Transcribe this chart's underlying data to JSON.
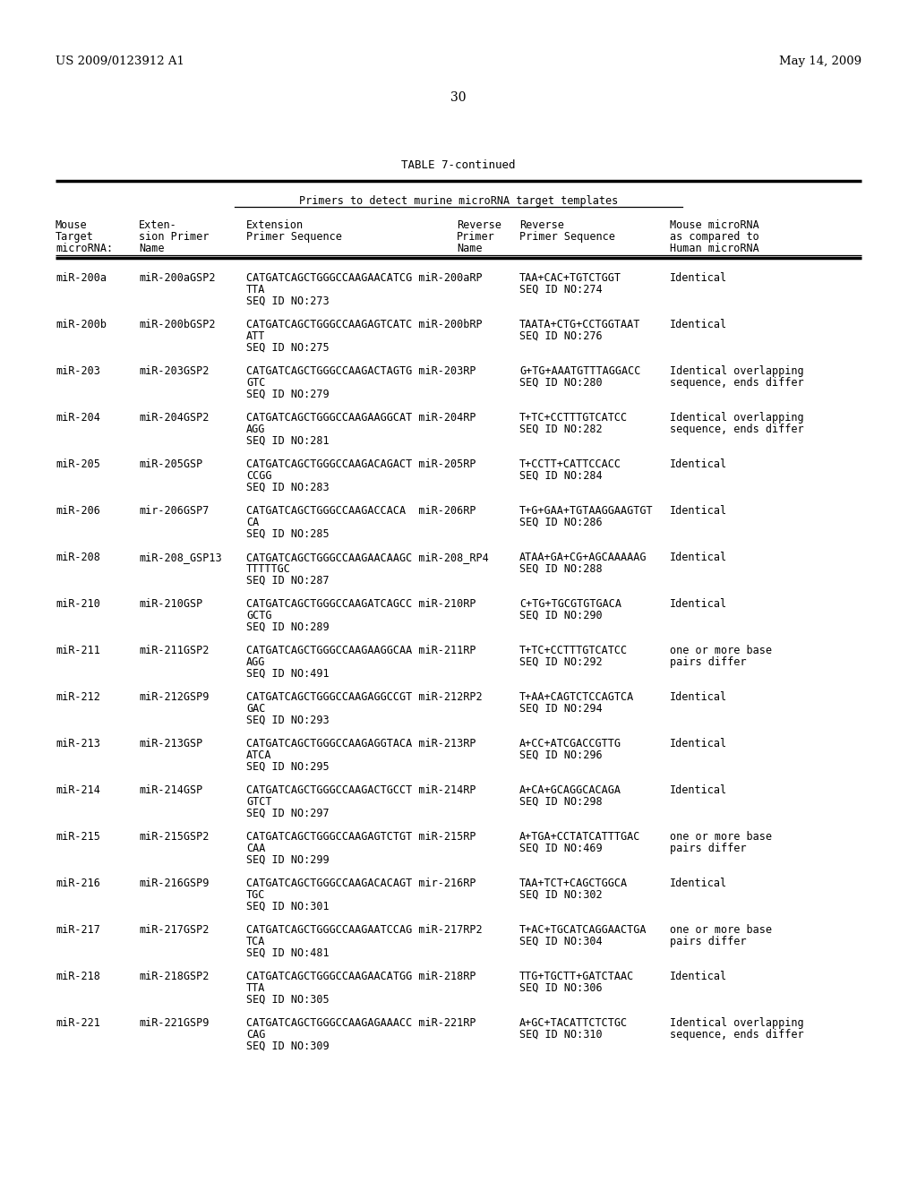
{
  "page_left": "US 2009/0123912 A1",
  "page_right": "May 14, 2009",
  "page_number": "30",
  "table_title": "TABLE 7-continued",
  "subtitle": "Primers to detect murine microRNA target templates",
  "col_headers": [
    [
      "Mouse",
      "Target",
      "microRNA:"
    ],
    [
      "Exten-",
      "sion Primer",
      "Name"
    ],
    [
      "Extension",
      "Primer Sequence"
    ],
    [
      "Reverse",
      "Primer",
      "Name"
    ],
    [
      "Reverse",
      "Primer Sequence"
    ],
    [
      "Mouse microRNA",
      "as compared to",
      "Human microRNA"
    ]
  ],
  "rows": [
    {
      "mirna": "miR-200a",
      "ext_primer": "miR-200aGSP2",
      "ext_seq": [
        "CATGATCAGCTGGGCCAAGAACATCG miR-200aRP",
        "TTA",
        "SEQ ID NO:273"
      ],
      "rev_seq": [
        "TAA+CAC+TGTCTGGT",
        "SEQ ID NO:274"
      ],
      "comparison": "Identical"
    },
    {
      "mirna": "miR-200b",
      "ext_primer": "miR-200bGSP2",
      "ext_seq": [
        "CATGATCAGCTGGGCCAAGAGTCATC miR-200bRP",
        "ATT",
        "SEQ ID NO:275"
      ],
      "rev_seq": [
        "TAATA+CTG+CCTGGTAAT",
        "SEQ ID NO:276"
      ],
      "comparison": "Identical"
    },
    {
      "mirna": "miR-203",
      "ext_primer": "miR-203GSP2",
      "ext_seq": [
        "CATGATCAGCTGGGCCAAGACTAGTG miR-203RP",
        "GTC",
        "SEQ ID NO:279"
      ],
      "rev_seq": [
        "G+TG+AAATGTTTAGGACC",
        "SEQ ID NO:280"
      ],
      "comparison": [
        "Identical overlapping",
        "sequence, ends differ"
      ]
    },
    {
      "mirna": "miR-204",
      "ext_primer": "miR-204GSP2",
      "ext_seq": [
        "CATGATCAGCTGGGCCAAGAAGGCAT miR-204RP",
        "AGG",
        "SEQ ID NO:281"
      ],
      "rev_seq": [
        "T+TC+CCTTTGTCATCC",
        "SEQ ID NO:282"
      ],
      "comparison": [
        "Identical overlapping",
        "sequence, ends differ"
      ]
    },
    {
      "mirna": "miR-205",
      "ext_primer": "miR-205GSP",
      "ext_seq": [
        "CATGATCAGCTGGGCCAAGACAGACT miR-205RP",
        "CCGG",
        "SEQ ID NO:283"
      ],
      "rev_seq": [
        "T+CCTT+CATTCCACC",
        "SEQ ID NO:284"
      ],
      "comparison": "Identical"
    },
    {
      "mirna": "miR-206",
      "ext_primer": "mir-206GSP7",
      "ext_seq": [
        "CATGATCAGCTGGGCCAAGACCACA  miR-206RP",
        "CA",
        "SEQ ID NO:285"
      ],
      "rev_seq": [
        "T+G+GAA+TGTAAGGAAGTGT",
        "SEQ ID NO:286"
      ],
      "comparison": "Identical"
    },
    {
      "mirna": "miR-208",
      "ext_primer": "miR-208_GSP13",
      "ext_seq": [
        "CATGATCAGCTGGGCCAAGAACAAGC miR-208_RP4",
        "TTTTTGC",
        "SEQ ID NO:287"
      ],
      "rev_seq": [
        "ATAA+GA+CG+AGCAAAAAG",
        "SEQ ID NO:288"
      ],
      "comparison": "Identical"
    },
    {
      "mirna": "miR-210",
      "ext_primer": "miR-210GSP",
      "ext_seq": [
        "CATGATCAGCTGGGCCAAGATCAGCC miR-210RP",
        "GCTG",
        "SEQ ID NO:289"
      ],
      "rev_seq": [
        "C+TG+TGCGTGTGACA",
        "SEQ ID NO:290"
      ],
      "comparison": "Identical"
    },
    {
      "mirna": "miR-211",
      "ext_primer": "miR-211GSP2",
      "ext_seq": [
        "CATGATCAGCTGGGCCAAGAAGGCAA miR-211RP",
        "AGG",
        "SEQ ID NO:491"
      ],
      "rev_seq": [
        "T+TC+CCTTTGTCATCC",
        "SEQ ID NO:292"
      ],
      "comparison": [
        "one or more base",
        "pairs differ"
      ]
    },
    {
      "mirna": "miR-212",
      "ext_primer": "miR-212GSP9",
      "ext_seq": [
        "CATGATCAGCTGGGCCAAGAGGCCGT miR-212RP2",
        "GAC",
        "SEQ ID NO:293"
      ],
      "rev_seq": [
        "T+AA+CAGTCTCCAGTCA",
        "SEQ ID NO:294"
      ],
      "comparison": "Identical"
    },
    {
      "mirna": "miR-213",
      "ext_primer": "miR-213GSP",
      "ext_seq": [
        "CATGATCAGCTGGGCCAAGAGGTACA miR-213RP",
        "ATCA",
        "SEQ ID NO:295"
      ],
      "rev_seq": [
        "A+CC+ATCGACCGTTG",
        "SEQ ID NO:296"
      ],
      "comparison": "Identical"
    },
    {
      "mirna": "miR-214",
      "ext_primer": "miR-214GSP",
      "ext_seq": [
        "CATGATCAGCTGGGCCAAGACTGCCT miR-214RP",
        "GTCT",
        "SEQ ID NO:297"
      ],
      "rev_seq": [
        "A+CA+GCAGGCACAGA",
        "SEQ ID NO:298"
      ],
      "comparison": "Identical"
    },
    {
      "mirna": "miR-215",
      "ext_primer": "miR-215GSP2",
      "ext_seq": [
        "CATGATCAGCTGGGCCAAGAGTCTGT miR-215RP",
        "CAA",
        "SEQ ID NO:299"
      ],
      "rev_seq": [
        "A+TGA+CCTATCATTTGAC",
        "SEQ ID NO:469"
      ],
      "comparison": [
        "one or more base",
        "pairs differ"
      ]
    },
    {
      "mirna": "miR-216",
      "ext_primer": "miR-216GSP9",
      "ext_seq": [
        "CATGATCAGCTGGGCCAAGACACAGT mir-216RP",
        "TGC",
        "SEQ ID NO:301"
      ],
      "rev_seq": [
        "TAA+TCT+CAGCTGGCA",
        "SEQ ID NO:302"
      ],
      "comparison": "Identical"
    },
    {
      "mirna": "miR-217",
      "ext_primer": "miR-217GSP2",
      "ext_seq": [
        "CATGATCAGCTGGGCCAAGAATCCAG miR-217RP2",
        "TCA",
        "SEQ ID NO:481"
      ],
      "rev_seq": [
        "T+AC+TGCATCAGGAACTGA",
        "SEQ ID NO:304"
      ],
      "comparison": [
        "one or more base",
        "pairs differ"
      ]
    },
    {
      "mirna": "miR-218",
      "ext_primer": "miR-218GSP2",
      "ext_seq": [
        "CATGATCAGCTGGGCCAAGAACATGG miR-218RP",
        "TTA",
        "SEQ ID NO:305"
      ],
      "rev_seq": [
        "TTG+TGCTT+GATCTAAC",
        "SEQ ID NO:306"
      ],
      "comparison": "Identical"
    },
    {
      "mirna": "miR-221",
      "ext_primer": "miR-221GSP9",
      "ext_seq": [
        "CATGATCAGCTGGGCCAAGAGAAACC miR-221RP",
        "CAG",
        "SEQ ID NO:309"
      ],
      "rev_seq": [
        "A+GC+TACATTCTCTGC",
        "SEQ ID NO:310"
      ],
      "comparison": [
        "Identical overlapping",
        "sequence, ends differ"
      ]
    }
  ],
  "bg_color": "#ffffff",
  "text_color": "#000000"
}
